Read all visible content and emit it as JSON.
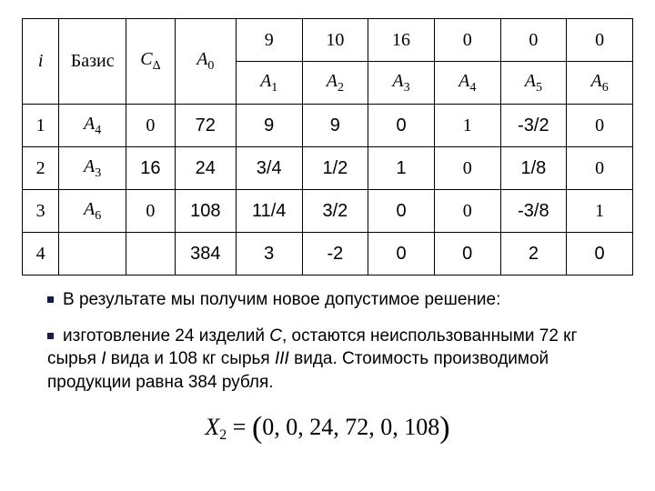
{
  "table": {
    "header1": {
      "i": "i",
      "basis": "Базис",
      "cd_C": "C",
      "cd_delta": "Δ",
      "a0_A": "A",
      "a0_0": "0",
      "c1": "9",
      "c2": "10",
      "c3": "16",
      "c4": "0",
      "c5": "0",
      "c6": "0"
    },
    "header2": {
      "A": "A",
      "s1": "1",
      "s2": "2",
      "s3": "3",
      "s4": "4",
      "s5": "5",
      "s6": "6"
    },
    "rows": [
      {
        "i": "1",
        "basis_A": "A",
        "basis_sub": "4",
        "cd": "0",
        "a0": "72",
        "v": [
          "9",
          "9",
          "0",
          "1",
          "-3/2",
          "0"
        ]
      },
      {
        "i": "2",
        "basis_A": "A",
        "basis_sub": "3",
        "cd": "16",
        "a0": "24",
        "v": [
          "3/4",
          "1/2",
          "1",
          "0",
          "1/8",
          "0"
        ]
      },
      {
        "i": "3",
        "basis_A": "A",
        "basis_sub": "6",
        "cd": "0",
        "a0": "108",
        "v": [
          "11/4",
          "3/2",
          "0",
          "0",
          "-3/8",
          "1"
        ]
      },
      {
        "i": "4",
        "basis_A": "",
        "basis_sub": "",
        "cd": "",
        "a0": "384",
        "v": [
          "3",
          "-2",
          "0",
          "0",
          "2",
          "0"
        ]
      }
    ]
  },
  "text": {
    "p1": "В результате мы получим новое допустимое решение:",
    "p2a": "изготовление 24 изделий ",
    "p2b": "С",
    "p2c": ",  остаются неиспользованными 72 кг сырья ",
    "p2d": "I",
    "p2e": " вида и 108 кг сырья ",
    "p2f": "III",
    "p2g": " вида. Стоимость  производимой продукции равна  384 рубля."
  },
  "formula": {
    "X": "X",
    "sub": "2",
    "eq": " = ",
    "lp": "(",
    "vals": "0, 0, 24, 72, 0, 108",
    "rp": ")"
  }
}
